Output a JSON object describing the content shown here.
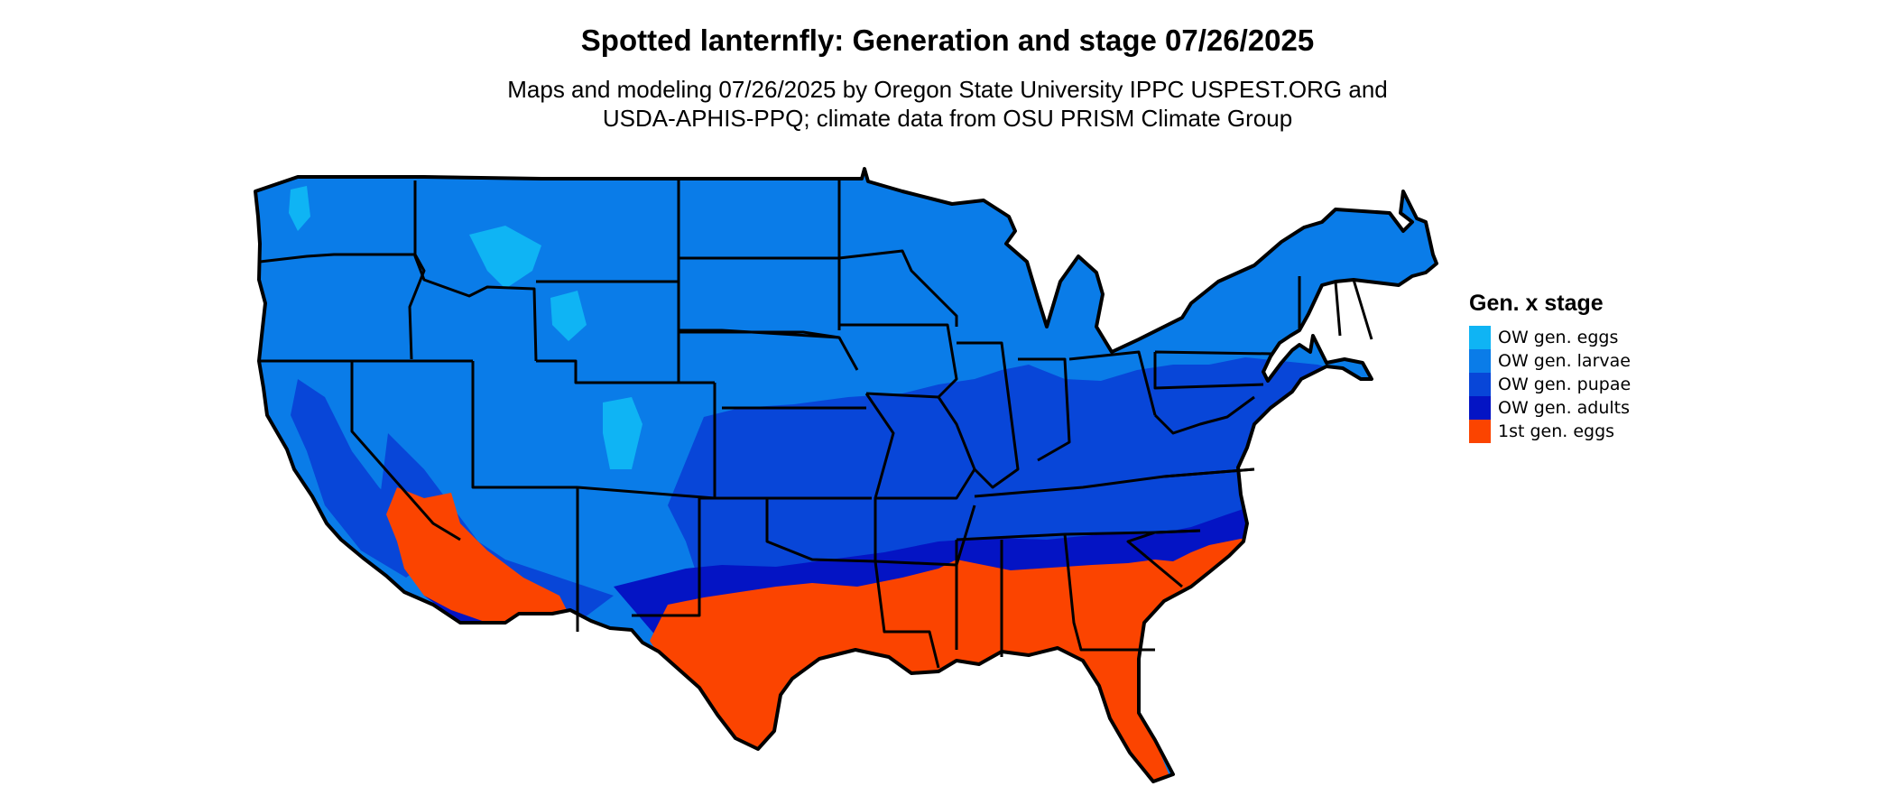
{
  "title": "Spotted lanternfly: Generation and stage 07/26/2025",
  "subtitle_line1": "Maps and modeling 07/26/2025 by Oregon State University IPPC USPEST.ORG and",
  "subtitle_line2": "USDA-APHIS-PPQ; climate data from OSU PRISM Climate Group",
  "legend": {
    "title": "Gen. x stage",
    "items": [
      {
        "label": "OW gen. eggs",
        "color": "#0fb4f4"
      },
      {
        "label": "OW gen. larvae",
        "color": "#0a7ce8"
      },
      {
        "label": "OW gen. pupae",
        "color": "#0846d8"
      },
      {
        "label": "OW gen. adults",
        "color": "#0414c4"
      },
      {
        "label": "1st gen. eggs",
        "color": "#fb4400"
      }
    ]
  },
  "colors": {
    "ow_eggs": "#0fb4f4",
    "ow_larvae": "#0a7ce8",
    "ow_pupae": "#0846d8",
    "ow_adults": "#0414c4",
    "gen1_eggs": "#fb4400",
    "border": "#000000"
  }
}
